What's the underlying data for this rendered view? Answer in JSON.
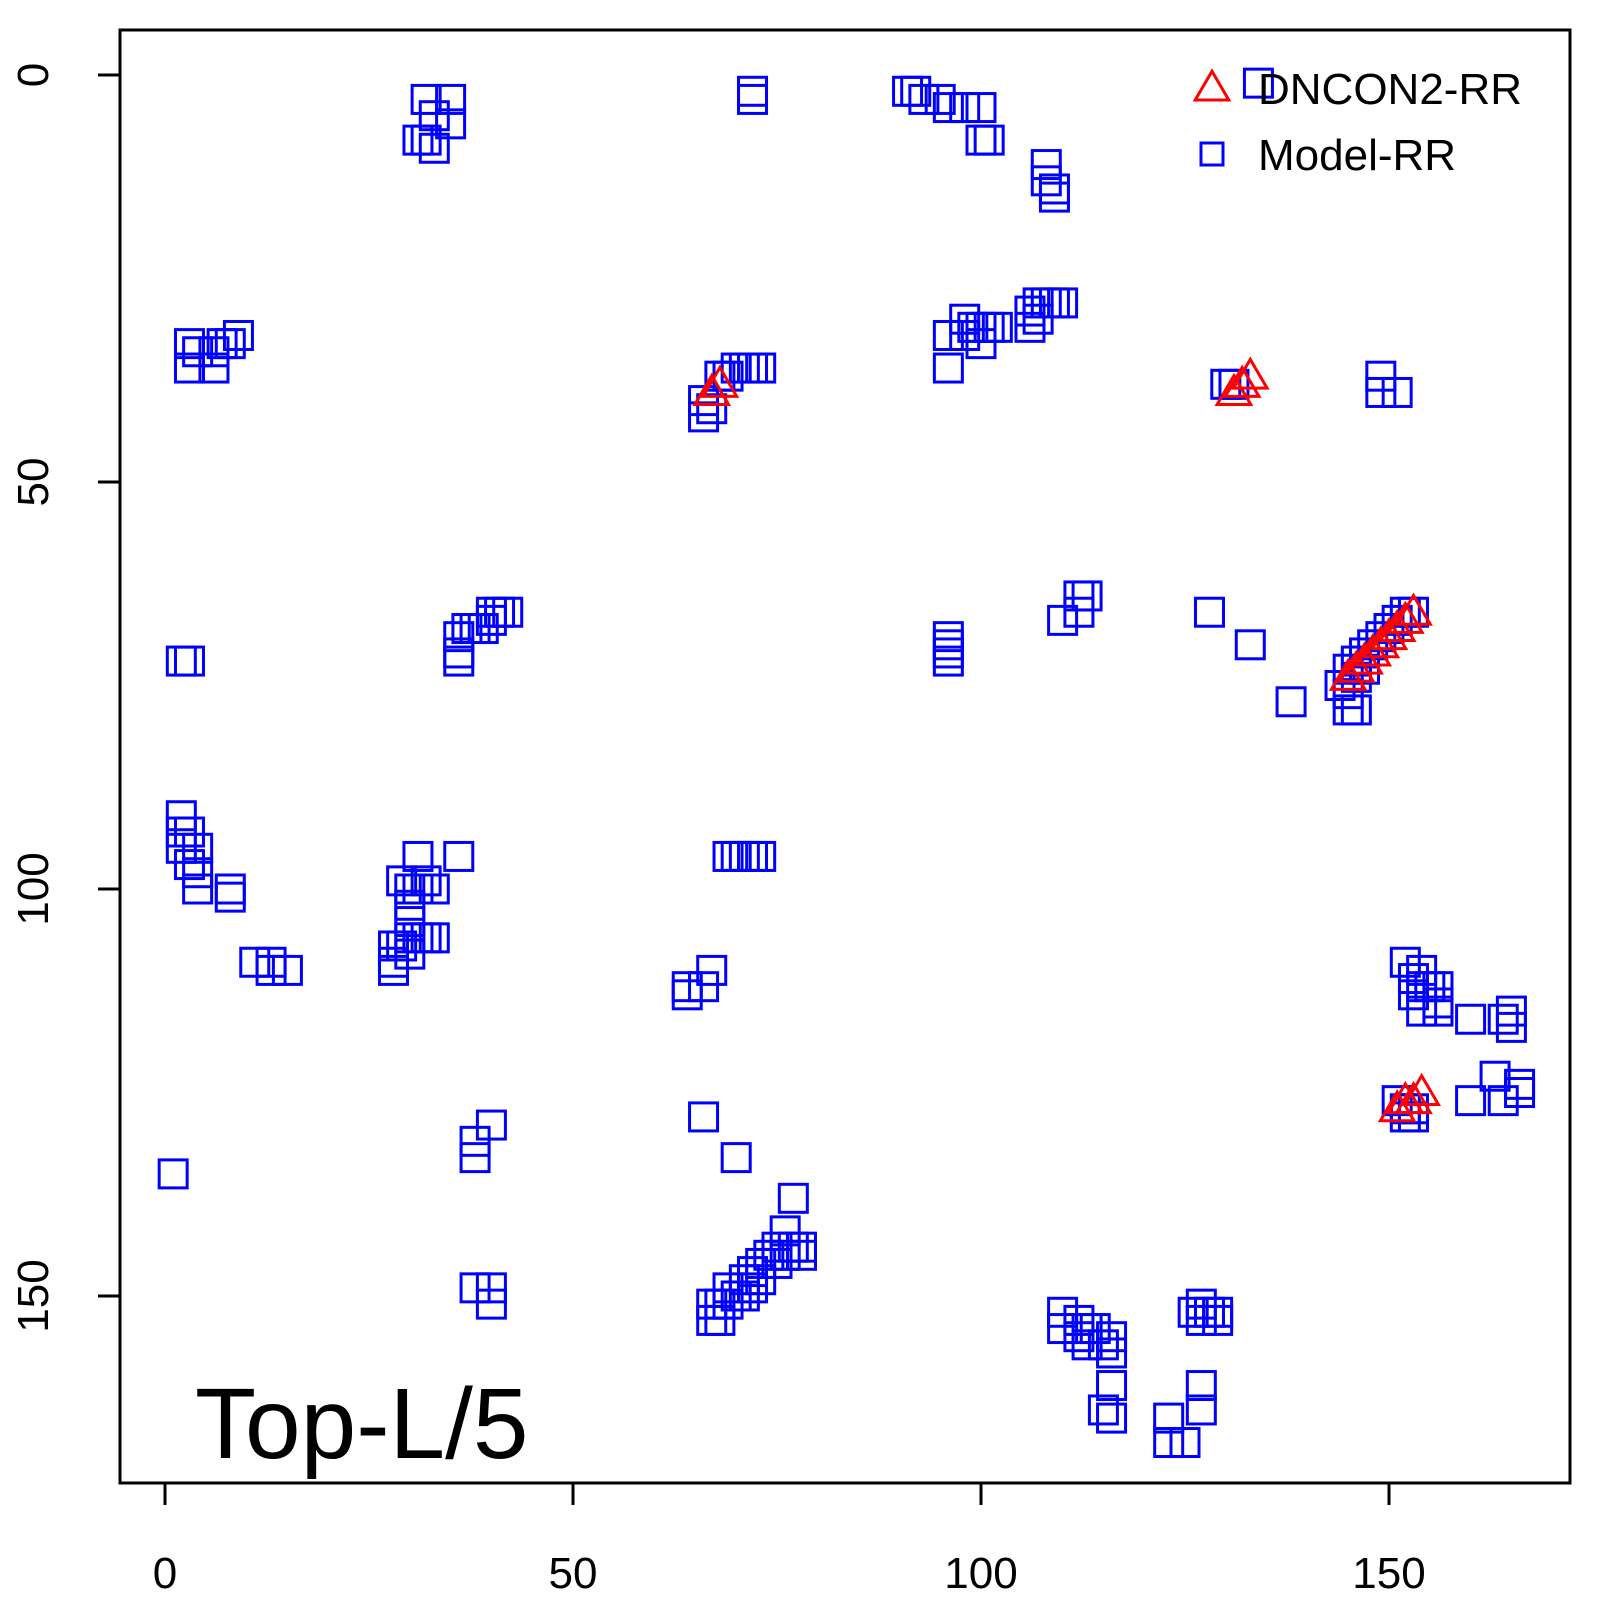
{
  "chart_data": {
    "type": "scatter",
    "title": "",
    "xlabel": "",
    "ylabel": "",
    "xlim": [
      -5,
      174
    ],
    "ylim": [
      174,
      -6
    ],
    "y_reversed": true,
    "x_ticks": [
      0,
      50,
      100,
      150
    ],
    "y_ticks": [
      0,
      50,
      100,
      150
    ],
    "grid": false,
    "legend_position": "top-right",
    "annotation": "Top-L/5",
    "series": [
      {
        "name": "DNCON2-RR",
        "marker": "triangle",
        "color": "#ff0000",
        "points": [
          [
            67,
            39
          ],
          [
            68,
            38
          ],
          [
            131,
            39
          ],
          [
            132,
            38
          ],
          [
            133,
            37
          ],
          [
            145,
            74
          ],
          [
            146,
            73
          ],
          [
            147,
            72
          ],
          [
            148,
            71
          ],
          [
            149,
            70
          ],
          [
            150,
            69
          ],
          [
            151,
            68
          ],
          [
            152,
            67
          ],
          [
            153,
            66
          ],
          [
            151,
            127
          ],
          [
            152,
            126
          ],
          [
            153,
            126
          ],
          [
            154,
            125
          ]
        ]
      },
      {
        "name": "Model-RR",
        "marker": "square",
        "color": "#0000ff",
        "points": [
          [
            32,
            3
          ],
          [
            35,
            3
          ],
          [
            33,
            5
          ],
          [
            35,
            6
          ],
          [
            31,
            8
          ],
          [
            32,
            8
          ],
          [
            33,
            9
          ],
          [
            72,
            2
          ],
          [
            72,
            3
          ],
          [
            91,
            2
          ],
          [
            92,
            2
          ],
          [
            93,
            3
          ],
          [
            95,
            3
          ],
          [
            96,
            4
          ],
          [
            98,
            4
          ],
          [
            100,
            4
          ],
          [
            100,
            8
          ],
          [
            101,
            8
          ],
          [
            108,
            11
          ],
          [
            108,
            13
          ],
          [
            109,
            14
          ],
          [
            109,
            15
          ],
          [
            3,
            33
          ],
          [
            4,
            34
          ],
          [
            6,
            34
          ],
          [
            7,
            33
          ],
          [
            8,
            33
          ],
          [
            9,
            32
          ],
          [
            3,
            36
          ],
          [
            6,
            36
          ],
          [
            66,
            40
          ],
          [
            66,
            42
          ],
          [
            67,
            41
          ],
          [
            68,
            37
          ],
          [
            69,
            37
          ],
          [
            70,
            36
          ],
          [
            71,
            36
          ],
          [
            72,
            36
          ],
          [
            73,
            36
          ],
          [
            96,
            32
          ],
          [
            98,
            32
          ],
          [
            98,
            30
          ],
          [
            99,
            31
          ],
          [
            100,
            33
          ],
          [
            100,
            31
          ],
          [
            101,
            31
          ],
          [
            102,
            31
          ],
          [
            96,
            36
          ],
          [
            106,
            29
          ],
          [
            106,
            31
          ],
          [
            107,
            28
          ],
          [
            107,
            30
          ],
          [
            108,
            28
          ],
          [
            109,
            28
          ],
          [
            110,
            28
          ],
          [
            130,
            38
          ],
          [
            131,
            38
          ],
          [
            134,
            1
          ],
          [
            149,
            37
          ],
          [
            149,
            39
          ],
          [
            151,
            39
          ],
          [
            2,
            72
          ],
          [
            3,
            72
          ],
          [
            36,
            69
          ],
          [
            36,
            71
          ],
          [
            37,
            68
          ],
          [
            38,
            68
          ],
          [
            39,
            68
          ],
          [
            40,
            67
          ],
          [
            40,
            66
          ],
          [
            41,
            66
          ],
          [
            42,
            66
          ],
          [
            36,
            72
          ],
          [
            96,
            69
          ],
          [
            96,
            70
          ],
          [
            96,
            71
          ],
          [
            96,
            72
          ],
          [
            110,
            67
          ],
          [
            112,
            64
          ],
          [
            112,
            66
          ],
          [
            113,
            64
          ],
          [
            128,
            66
          ],
          [
            133,
            70
          ],
          [
            138,
            77
          ],
          [
            144,
            75
          ],
          [
            145,
            73
          ],
          [
            145,
            76
          ],
          [
            146,
            72
          ],
          [
            146,
            74
          ],
          [
            147,
            71
          ],
          [
            147,
            73
          ],
          [
            148,
            70
          ],
          [
            149,
            69
          ],
          [
            150,
            68
          ],
          [
            151,
            67
          ],
          [
            152,
            66
          ],
          [
            153,
            66
          ],
          [
            145,
            78
          ],
          [
            146,
            78
          ],
          [
            2,
            91
          ],
          [
            2,
            93
          ],
          [
            2,
            95
          ],
          [
            3,
            93
          ],
          [
            3,
            97
          ],
          [
            4,
            95
          ],
          [
            4,
            98
          ],
          [
            4,
            100
          ],
          [
            8,
            100
          ],
          [
            8,
            101
          ],
          [
            11,
            109
          ],
          [
            13,
            109
          ],
          [
            13,
            110
          ],
          [
            15,
            110
          ],
          [
            29,
            99
          ],
          [
            30,
            100
          ],
          [
            30,
            102
          ],
          [
            30,
            104
          ],
          [
            31,
            96
          ],
          [
            31,
            100
          ],
          [
            32,
            99
          ],
          [
            33,
            100
          ],
          [
            36,
            96
          ],
          [
            28,
            107
          ],
          [
            28,
            109
          ],
          [
            28,
            110
          ],
          [
            29,
            107
          ],
          [
            30,
            106
          ],
          [
            30,
            108
          ],
          [
            31,
            106
          ],
          [
            32,
            106
          ],
          [
            33,
            106
          ],
          [
            69,
            96
          ],
          [
            70,
            96
          ],
          [
            71,
            96
          ],
          [
            72,
            96
          ],
          [
            73,
            96
          ],
          [
            64,
            112
          ],
          [
            64,
            113
          ],
          [
            66,
            112
          ],
          [
            67,
            110
          ],
          [
            152,
            109
          ],
          [
            153,
            111
          ],
          [
            153,
            113
          ],
          [
            154,
            110
          ],
          [
            154,
            112
          ],
          [
            154,
            115
          ],
          [
            155,
            112
          ],
          [
            156,
            112
          ],
          [
            156,
            114
          ],
          [
            156,
            115
          ],
          [
            160,
            116
          ],
          [
            164,
            116
          ],
          [
            165,
            115
          ],
          [
            165,
            117
          ],
          [
            163,
            123
          ],
          [
            166,
            124
          ],
          [
            166,
            125
          ],
          [
            160,
            126
          ],
          [
            164,
            126
          ],
          [
            151,
            126
          ],
          [
            152,
            127
          ],
          [
            153,
            127
          ],
          [
            152,
            128
          ],
          [
            153,
            128
          ],
          [
            1,
            135
          ],
          [
            38,
            131
          ],
          [
            38,
            133
          ],
          [
            40,
            129
          ],
          [
            66,
            128
          ],
          [
            70,
            133
          ],
          [
            77,
            138
          ],
          [
            67,
            151
          ],
          [
            67,
            153
          ],
          [
            68,
            151
          ],
          [
            68,
            153
          ],
          [
            69,
            149
          ],
          [
            69,
            151
          ],
          [
            70,
            150
          ],
          [
            71,
            148
          ],
          [
            71,
            150
          ],
          [
            72,
            147
          ],
          [
            72,
            149
          ],
          [
            73,
            146
          ],
          [
            73,
            148
          ],
          [
            74,
            145
          ],
          [
            75,
            144
          ],
          [
            75,
            146
          ],
          [
            76,
            142
          ],
          [
            76,
            145
          ],
          [
            77,
            144
          ],
          [
            78,
            144
          ],
          [
            78,
            145
          ],
          [
            38,
            149
          ],
          [
            40,
            149
          ],
          [
            40,
            151
          ],
          [
            110,
            152
          ],
          [
            110,
            154
          ],
          [
            112,
            153
          ],
          [
            112,
            155
          ],
          [
            113,
            154
          ],
          [
            113,
            156
          ],
          [
            114,
            154
          ],
          [
            115,
            156
          ],
          [
            116,
            155
          ],
          [
            116,
            157
          ],
          [
            116,
            161
          ],
          [
            115,
            164
          ],
          [
            116,
            165
          ],
          [
            123,
            165
          ],
          [
            123,
            168
          ],
          [
            125,
            168
          ],
          [
            127,
            161
          ],
          [
            127,
            164
          ],
          [
            126,
            152
          ],
          [
            127,
            151
          ],
          [
            127,
            153
          ],
          [
            128,
            152
          ],
          [
            129,
            152
          ],
          [
            129,
            153
          ]
        ]
      }
    ]
  }
}
